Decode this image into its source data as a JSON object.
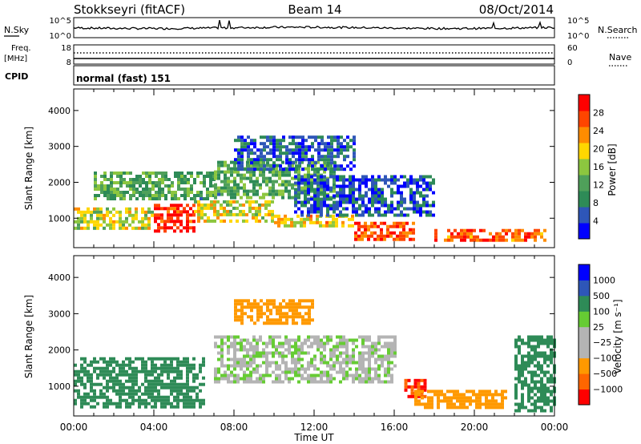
{
  "header": {
    "station": "Stokkseyri (fitACF)",
    "beam": "Beam 14",
    "date": "08/Oct/2014"
  },
  "noise_panel": {
    "left_label": "N.Sky",
    "left_ticks": [
      "10^5",
      "10^0"
    ],
    "right_ticks": [
      "10^5",
      "10^0"
    ],
    "right_legend": "N.Search"
  },
  "freq_panel": {
    "label_line1": "Freq.",
    "label_line2": "[MHz]",
    "left_ticks": [
      "18",
      "8"
    ],
    "right_ticks": [
      "60",
      "0"
    ],
    "right_legend": "Nave"
  },
  "cpid_panel": {
    "label": "CPID",
    "mode": "normal (fast) 151"
  },
  "x_axis": {
    "label": "Time UT",
    "tick_labels": [
      "00:00",
      "04:00",
      "08:00",
      "12:00",
      "16:00",
      "20:00",
      "00:00"
    ]
  },
  "colors": {
    "power_scale": [
      "#0000ff",
      "#2e56b8",
      "#2e8b57",
      "#4fa05a",
      "#8cc63f",
      "#ffd700",
      "#ff8c00",
      "#ff4500",
      "#ff0000"
    ],
    "velocity_scale": [
      "#ff0000",
      "#ff6600",
      "#ff9900",
      "#b4b4b4",
      "#b4b4b4",
      "#66cc33",
      "#2e8b57",
      "#2e56b8",
      "#0000ff"
    ]
  },
  "chart_data": [
    {
      "type": "heatmap",
      "title": "",
      "xlabel": "Time UT",
      "ylabel": "Slant Range [km]",
      "x_range_hours": [
        0,
        24
      ],
      "ylim": [
        180,
        4600
      ],
      "y_ticks": [
        1000,
        2000,
        3000,
        4000
      ],
      "y_tick_labels": [
        "1000",
        "2000",
        "3000",
        "4000"
      ],
      "colorbar": {
        "label": "Power [dB]",
        "range": [
          0,
          32
        ],
        "ticks": [
          4,
          8,
          12,
          16,
          20,
          24,
          28
        ],
        "tick_labels": [
          "4",
          "8",
          "12",
          "16",
          "20",
          "24",
          "28"
        ]
      },
      "features": [
        {
          "t": [
            0.0,
            4.0
          ],
          "range_km": [
            700,
            1300
          ],
          "value": 18
        },
        {
          "t": [
            4.0,
            6.0
          ],
          "range_km": [
            600,
            1400
          ],
          "value": 29
        },
        {
          "t": [
            6.0,
            10.0
          ],
          "range_km": [
            900,
            1500
          ],
          "value": 18
        },
        {
          "t": [
            10.0,
            14.0
          ],
          "range_km": [
            750,
            1100
          ],
          "value": 20
        },
        {
          "t": [
            14.0,
            17.0
          ],
          "range_km": [
            400,
            900
          ],
          "value": 27
        },
        {
          "t": [
            18.0,
            23.5
          ],
          "range_km": [
            350,
            700
          ],
          "value": 26
        },
        {
          "t": [
            1.0,
            7.0
          ],
          "range_km": [
            1500,
            2300
          ],
          "value": 12
        },
        {
          "t": [
            7.0,
            13.0
          ],
          "range_km": [
            1600,
            2600
          ],
          "value": 12
        },
        {
          "t": [
            8.0,
            14.0
          ],
          "range_km": [
            2400,
            3300
          ],
          "value": 6
        },
        {
          "t": [
            11.0,
            18.0
          ],
          "range_km": [
            1100,
            2200
          ],
          "value": 5
        }
      ]
    },
    {
      "type": "heatmap",
      "title": "",
      "xlabel": "Time UT",
      "ylabel": "Slant Range [km]",
      "x_range_hours": [
        0,
        24
      ],
      "ylim": [
        180,
        4600
      ],
      "y_ticks": [
        1000,
        2000,
        3000,
        4000
      ],
      "y_tick_labels": [
        "1000",
        "2000",
        "3000",
        "4000"
      ],
      "colorbar": {
        "label": "Velocity [m s⁻¹]",
        "ticks": [
          1000,
          500,
          100,
          25,
          -25,
          -100,
          -500,
          -1000
        ],
        "tick_labels": [
          "1000",
          "500",
          "100",
          "25",
          "−25",
          "−100",
          "−500",
          "−1000"
        ]
      },
      "features": [
        {
          "t": [
            0.0,
            6.5
          ],
          "range_km": [
            400,
            1800
          ],
          "value": 300
        },
        {
          "t": [
            7.0,
            16.0
          ],
          "range_km": [
            1100,
            2400
          ],
          "value": 0
        },
        {
          "t": [
            8.0,
            12.0
          ],
          "range_km": [
            2700,
            3400
          ],
          "value": -200
        },
        {
          "t": [
            16.5,
            17.5
          ],
          "range_km": [
            700,
            1200
          ],
          "value": -1000
        },
        {
          "t": [
            17.0,
            21.5
          ],
          "range_km": [
            400,
            900
          ],
          "value": -300
        },
        {
          "t": [
            22.0,
            24.0
          ],
          "range_km": [
            300,
            2400
          ],
          "value": 400
        }
      ]
    }
  ]
}
